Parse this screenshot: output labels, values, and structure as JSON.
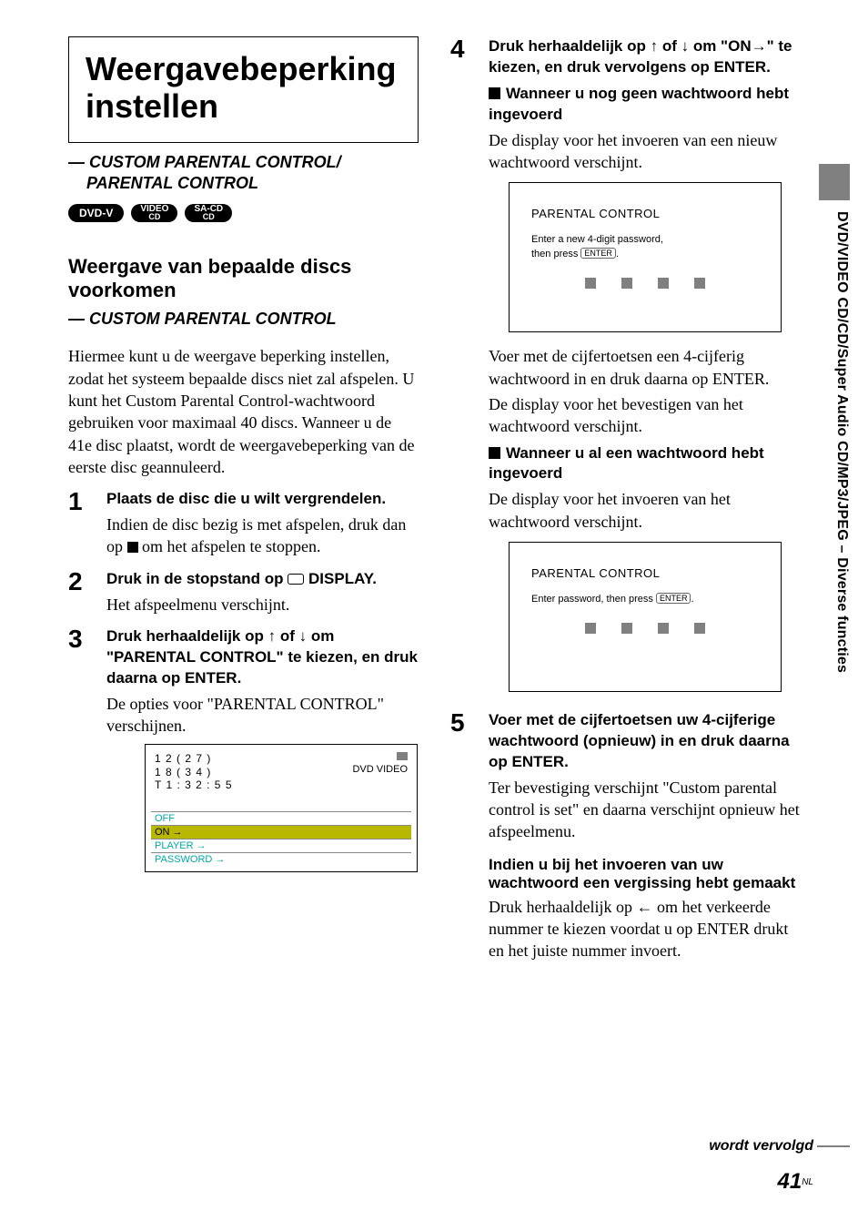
{
  "sideTab": "DVD/VIDEO CD/CD/Super Audio CD/MP3/JPEG – Diverse functies",
  "title": "Weergavebeperking instellen",
  "subtitle1a": "— CUSTOM PARENTAL CONTROL/",
  "subtitle1b": "PARENTAL CONTROL",
  "badges": {
    "b1": "DVD-V",
    "b2a": "VIDEO",
    "b2b": "CD",
    "b3a": "SA-CD",
    "b3b": "CD"
  },
  "h2": "Weergave van bepaalde discs voorkomen",
  "h3": "— CUSTOM PARENTAL CONTROL",
  "intro": "Hiermee kunt u de weergave beperking instellen, zodat het systeem bepaalde discs niet zal afspelen. U kunt het Custom Parental Control-wachtwoord gebruiken voor maximaal 40 discs. Wanneer u de 41e disc plaatst, wordt de weergavebeperking van de eerste disc geannuleerd.",
  "steps": {
    "s1": {
      "num": "1",
      "head": "Plaats de disc die u wilt vergrendelen.",
      "sub_a": "Indien de disc bezig is met afspelen, druk dan op ",
      "sub_b": " om het afspelen te stoppen."
    },
    "s2": {
      "num": "2",
      "head_a": "Druk in de stopstand op ",
      "head_b": " DISPLAY.",
      "sub": "Het afspeelmenu verschijnt."
    },
    "s3": {
      "num": "3",
      "head": "Druk herhaaldelijk op ↑ of ↓ om \"PARENTAL CONTROL\" te kiezen, en druk daarna op ENTER.",
      "sub": "De opties voor \"PARENTAL CONTROL\" verschijnen."
    },
    "s4": {
      "num": "4",
      "head": "Druk herhaaldelijk op ↑ of ↓ om \"ON→\" te kiezen, en druk vervolgens op ENTER.",
      "case1_title": "Wanneer u nog geen wachtwoord hebt ingevoerd",
      "case1_body": "De display voor het invoeren van een nieuw wachtwoord verschijnt.",
      "after1a": "Voer met de cijfertoetsen een 4-cijferig wachtwoord in en druk daarna op ENTER.",
      "after1b": "De display voor het bevestigen van het wachtwoord verschijnt.",
      "case2_title": "Wanneer u al een wachtwoord hebt ingevoerd",
      "case2_body": "De display voor het invoeren van het wachtwoord verschijnt."
    },
    "s5": {
      "num": "5",
      "head": "Voer met de cijfertoetsen uw 4-cijferige wachtwoord (opnieuw) in en druk daarna op ENTER.",
      "sub": "Ter bevestiging verschijnt \"Custom parental control is set\" en daarna verschijnt opnieuw het afspeelmenu.",
      "err_title": "Indien u bij het invoeren van uw wachtwoord een vergissing hebt gemaakt",
      "err_body_a": "Druk herhaaldelijk op ",
      "err_body_b": " om het verkeerde nummer te kiezen voordat u op ENTER drukt en het juiste nummer invoert."
    }
  },
  "osd1": {
    "l1": "1 2 ( 2 7 )",
    "l2": "1 8 ( 3 4 )",
    "l3": "T     1 : 3 2 : 5 5",
    "label": "DVD VIDEO",
    "rows": {
      "r1": "OFF",
      "r2": "ON →",
      "r3": "PLAYER →",
      "r4": "PASSWORD →"
    }
  },
  "osd2": {
    "title": "PARENTAL CONTROL",
    "msg1": "Enter a new 4-digit password,",
    "msg2a": "then press ",
    "enter": "ENTER",
    "msg2b": "."
  },
  "osd3": {
    "title": "PARENTAL CONTROL",
    "msg_a": "Enter password, then press ",
    "enter": "ENTER",
    "msg_b": "."
  },
  "continued": "wordt vervolgd",
  "pageNum": "41",
  "pageLang": "NL"
}
